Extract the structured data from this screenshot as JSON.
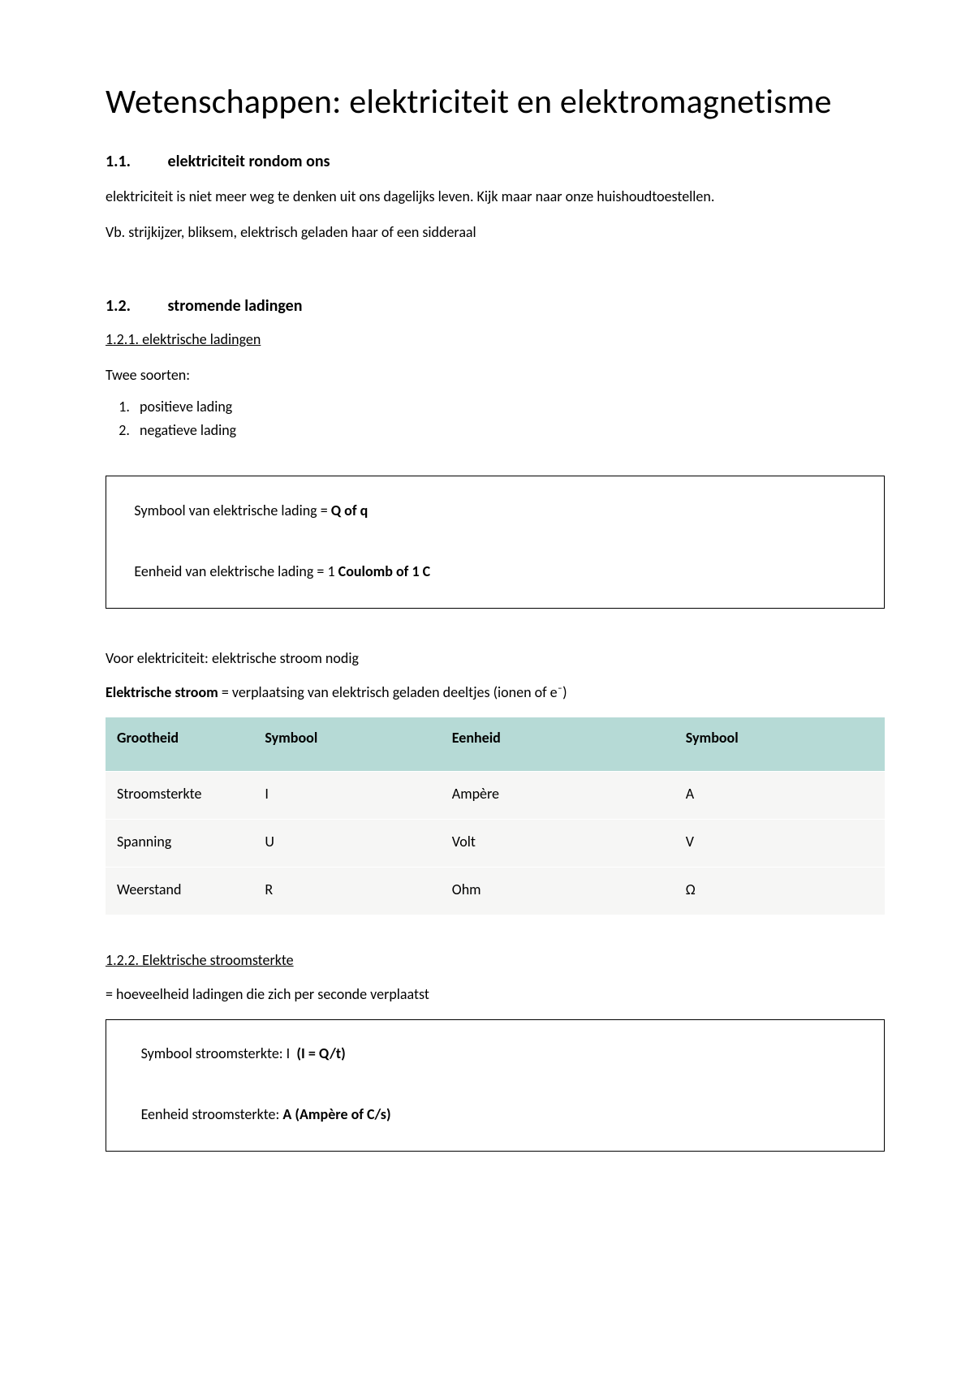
{
  "title": "Wetenschappen: elektriciteit en elektromagnetisme",
  "section1": {
    "num": "1.1.",
    "heading": "elektriciteit rondom ons",
    "p1": "elektriciteit is niet meer weg te denken uit ons dagelijks leven. Kijk maar naar onze huishoudtoestellen.",
    "p2": "Vb. strijkijzer, bliksem, elektrisch geladen haar of een sidderaal"
  },
  "section2": {
    "num": "1.2.",
    "heading": "stromende ladingen",
    "sub1": "1.2.1. elektrische ladingen",
    "twee": "Twee soorten:",
    "items": [
      "positieve lading",
      "negatieve lading"
    ],
    "box1_l1_a": "Symbool van elektrische lading = ",
    "box1_l1_b": "Q of q",
    "box1_l2_a": "Eenheid van elektrische lading = 1 ",
    "box1_l2_b": "Coulomb of 1 C",
    "voor": "Voor elektriciteit: elektrische stroom nodig",
    "def_b": "Elektrische stroom",
    "def_rest": " = verplaatsing van elektrisch geladen deeltjes (ionen of e⁻)",
    "table": {
      "header_bg": "#b6dad6",
      "row_bg": "#f6f6f5",
      "columns": [
        "Grootheid",
        "Symbool",
        "Eenheid",
        "Symbool"
      ],
      "rows": [
        [
          "Stroomsterkte",
          "I",
          "Ampère",
          "A"
        ],
        [
          "Spanning",
          "U",
          "Volt",
          "V"
        ],
        [
          "Weerstand",
          "R",
          "Ohm",
          "Ω"
        ]
      ]
    },
    "sub2": "1.2.2. Elektrische stroomsterkte",
    "eq": "= hoeveelheid ladingen die zich per seconde verplaatst",
    "box2_l1_a": "Symbool stroomsterkte: I  ",
    "box2_l1_b": "(I = Q/t)",
    "box2_l2_a": "Eenheid stroomsterkte: ",
    "box2_l2_b": "A (Ampère of C/s)"
  }
}
